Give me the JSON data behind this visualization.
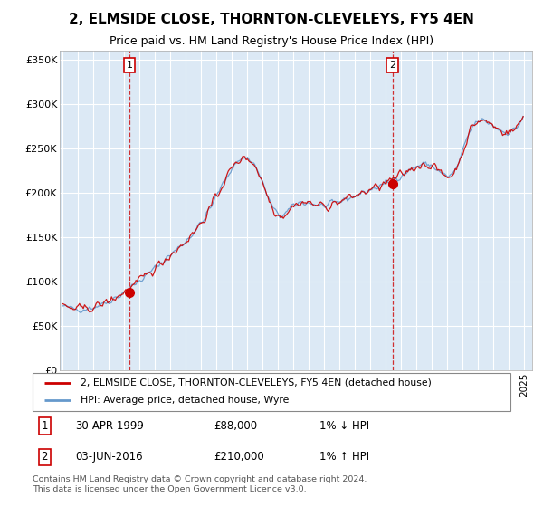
{
  "title": "2, ELMSIDE CLOSE, THORNTON-CLEVELEYS, FY5 4EN",
  "subtitle": "Price paid vs. HM Land Registry's House Price Index (HPI)",
  "ylabel_ticks": [
    "£0",
    "£50K",
    "£100K",
    "£150K",
    "£200K",
    "£250K",
    "£300K",
    "£350K"
  ],
  "ytick_values": [
    0,
    50000,
    100000,
    150000,
    200000,
    250000,
    300000,
    350000
  ],
  "ylim": [
    0,
    360000
  ],
  "xlim_start": 1994.8,
  "xlim_end": 2025.5,
  "background_color": "#dce9f5",
  "grid_color": "#ffffff",
  "hpi_color": "#6699cc",
  "price_color": "#cc0000",
  "sale1_x": 1999.33,
  "sale1_y": 88000,
  "sale2_x": 2016.42,
  "sale2_y": 210000,
  "sale1_label": "30-APR-1999",
  "sale1_price": "£88,000",
  "sale1_hpi": "1% ↓ HPI",
  "sale2_label": "03-JUN-2016",
  "sale2_price": "£210,000",
  "sale2_hpi": "1% ↑ HPI",
  "legend_line1": "2, ELMSIDE CLOSE, THORNTON-CLEVELEYS, FY5 4EN (detached house)",
  "legend_line2": "HPI: Average price, detached house, Wyre",
  "footer": "Contains HM Land Registry data © Crown copyright and database right 2024.\nThis data is licensed under the Open Government Licence v3.0."
}
